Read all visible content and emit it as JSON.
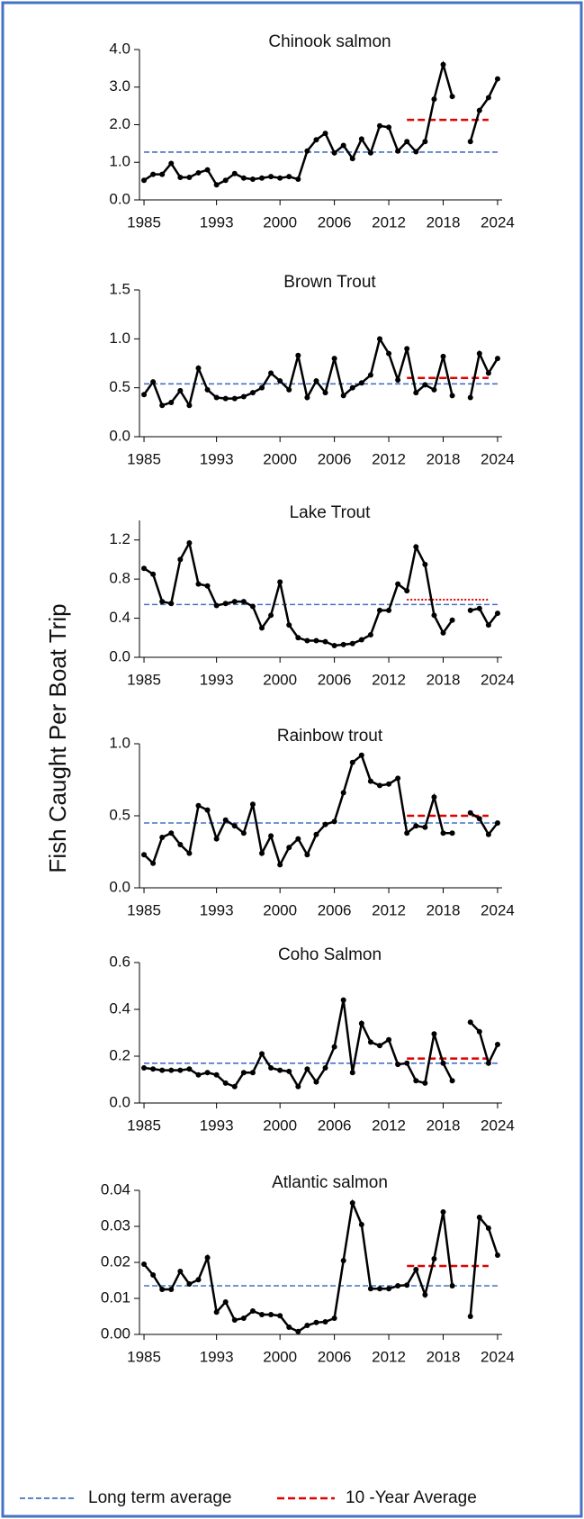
{
  "y_label": "Fish Caught Per Boat Trip",
  "legend": [
    {
      "name": "Long term average",
      "color": "#4472c4"
    },
    {
      "name": "10 -Year Average",
      "color": "#e00000"
    }
  ],
  "chart_data": [
    {
      "type": "line",
      "title": "Chinook salmon",
      "color": "#000000",
      "x": [
        1985,
        1986,
        1987,
        1988,
        1989,
        1990,
        1991,
        1992,
        1993,
        1994,
        1995,
        1996,
        1997,
        1998,
        1999,
        2000,
        2001,
        2002,
        2003,
        2004,
        2005,
        2006,
        2007,
        2008,
        2009,
        2010,
        2011,
        2012,
        2013,
        2014,
        2015,
        2016,
        2017,
        2018,
        2019,
        2020,
        2021,
        2022,
        2023,
        2024
      ],
      "values": [
        0.52,
        0.68,
        0.68,
        0.97,
        0.6,
        0.6,
        0.72,
        0.8,
        0.4,
        0.52,
        0.7,
        0.58,
        0.55,
        0.58,
        0.62,
        0.58,
        0.62,
        0.55,
        1.3,
        1.6,
        1.77,
        1.25,
        1.45,
        1.1,
        1.62,
        1.25,
        1.97,
        1.93,
        1.3,
        1.55,
        1.28,
        1.55,
        2.68,
        3.6,
        2.75,
        null,
        1.55,
        2.38,
        2.72,
        3.22
      ],
      "long_term_average": 1.27,
      "long_term_range": [
        1985,
        2024
      ],
      "ten_year_average": 2.13,
      "ten_year_range": [
        2014,
        2023
      ],
      "ten_year_style": "dashed",
      "xlim": [
        1984.5,
        2024.5
      ],
      "xticks": [
        1985,
        1993,
        2000,
        2006,
        2012,
        2018,
        2024
      ],
      "ylim": [
        0,
        4
      ],
      "yticks": [
        {
          "value": 0,
          "label": "0.0"
        },
        {
          "value": 1,
          "label": "1.0"
        },
        {
          "value": 2,
          "label": "2.0"
        },
        {
          "value": 3,
          "label": "3.0"
        },
        {
          "value": 4,
          "label": "4.0"
        }
      ]
    },
    {
      "type": "line",
      "title": "Brown Trout",
      "color": "#000000",
      "x": [
        1985,
        1986,
        1987,
        1988,
        1989,
        1990,
        1991,
        1992,
        1993,
        1994,
        1995,
        1996,
        1997,
        1998,
        1999,
        2000,
        2001,
        2002,
        2003,
        2004,
        2005,
        2006,
        2007,
        2008,
        2009,
        2010,
        2011,
        2012,
        2013,
        2014,
        2015,
        2016,
        2017,
        2018,
        2019,
        2020,
        2021,
        2022,
        2023,
        2024
      ],
      "values": [
        0.43,
        0.56,
        0.32,
        0.35,
        0.47,
        0.32,
        0.7,
        0.48,
        0.4,
        0.39,
        0.39,
        0.41,
        0.45,
        0.5,
        0.65,
        0.57,
        0.48,
        0.83,
        0.4,
        0.57,
        0.45,
        0.8,
        0.42,
        0.5,
        0.55,
        0.63,
        1.0,
        0.85,
        0.58,
        0.9,
        0.45,
        0.53,
        0.48,
        0.82,
        0.42,
        null,
        0.4,
        0.85,
        0.65,
        0.8
      ],
      "long_term_average": 0.54,
      "long_term_range": [
        1985,
        2024
      ],
      "ten_year_average": 0.6,
      "ten_year_range": [
        2014,
        2023
      ],
      "ten_year_style": "dashed",
      "xlim": [
        1984.5,
        2024.5
      ],
      "xticks": [
        1985,
        1993,
        2000,
        2006,
        2012,
        2018,
        2024
      ],
      "ylim": [
        0,
        1.5
      ],
      "yticks": [
        {
          "value": 0,
          "label": "0.0"
        },
        {
          "value": 0.5,
          "label": "0.5"
        },
        {
          "value": 1,
          "label": "1.0"
        },
        {
          "value": 1.5,
          "label": "1.5"
        }
      ]
    },
    {
      "type": "line",
      "title": "Lake Trout",
      "color": "#000000",
      "x": [
        1985,
        1986,
        1987,
        1988,
        1989,
        1990,
        1991,
        1992,
        1993,
        1994,
        1995,
        1996,
        1997,
        1998,
        1999,
        2000,
        2001,
        2002,
        2003,
        2004,
        2005,
        2006,
        2007,
        2008,
        2009,
        2010,
        2011,
        2012,
        2013,
        2014,
        2015,
        2016,
        2017,
        2018,
        2019,
        2020,
        2021,
        2022,
        2023,
        2024
      ],
      "values": [
        0.91,
        0.85,
        0.57,
        0.55,
        1.0,
        1.17,
        0.75,
        0.73,
        0.53,
        0.55,
        0.57,
        0.57,
        0.52,
        0.3,
        0.43,
        0.77,
        0.33,
        0.2,
        0.17,
        0.17,
        0.16,
        0.12,
        0.13,
        0.14,
        0.18,
        0.23,
        0.48,
        0.48,
        0.75,
        0.68,
        1.13,
        0.95,
        0.43,
        0.25,
        0.38,
        null,
        0.48,
        0.5,
        0.33,
        0.45
      ],
      "long_term_average": 0.54,
      "long_term_range": [
        1985,
        2024
      ],
      "ten_year_average": 0.59,
      "ten_year_range": [
        2014,
        2023
      ],
      "ten_year_style": "dotted",
      "xlim": [
        1984.5,
        2024.5
      ],
      "xticks": [
        1985,
        1993,
        2000,
        2006,
        2012,
        2018,
        2024
      ],
      "ylim": [
        0,
        1.4
      ],
      "yticks": [
        {
          "value": 0,
          "label": "0.0"
        },
        {
          "value": 0.4,
          "label": "0.4"
        },
        {
          "value": 0.8,
          "label": "0.8"
        },
        {
          "value": 1.2,
          "label": "1.2"
        }
      ]
    },
    {
      "type": "line",
      "title": "Rainbow trout",
      "color": "#000000",
      "x": [
        1985,
        1986,
        1987,
        1988,
        1989,
        1990,
        1991,
        1992,
        1993,
        1994,
        1995,
        1996,
        1997,
        1998,
        1999,
        2000,
        2001,
        2002,
        2003,
        2004,
        2005,
        2006,
        2007,
        2008,
        2009,
        2010,
        2011,
        2012,
        2013,
        2014,
        2015,
        2016,
        2017,
        2018,
        2019,
        2020,
        2021,
        2022,
        2023,
        2024
      ],
      "values": [
        0.23,
        0.17,
        0.35,
        0.38,
        0.3,
        0.24,
        0.57,
        0.54,
        0.34,
        0.47,
        0.43,
        0.38,
        0.58,
        0.24,
        0.36,
        0.16,
        0.28,
        0.34,
        0.23,
        0.37,
        0.44,
        0.46,
        0.66,
        0.87,
        0.92,
        0.74,
        0.71,
        0.72,
        0.76,
        0.38,
        0.43,
        0.42,
        0.63,
        0.38,
        0.38,
        null,
        0.52,
        0.48,
        0.37,
        0.45
      ],
      "long_term_average": 0.45,
      "long_term_range": [
        1985,
        2024
      ],
      "ten_year_average": 0.5,
      "ten_year_range": [
        2014,
        2023
      ],
      "ten_year_style": "dashed",
      "xlim": [
        1984.5,
        2024.5
      ],
      "xticks": [
        1985,
        1993,
        2000,
        2006,
        2012,
        2018,
        2024
      ],
      "ylim": [
        0,
        1
      ],
      "yticks": [
        {
          "value": 0,
          "label": "0.0"
        },
        {
          "value": 0.5,
          "label": "0.5"
        },
        {
          "value": 1,
          "label": "1.0"
        }
      ]
    },
    {
      "type": "line",
      "title": "Coho Salmon",
      "color": "#000000",
      "x": [
        1985,
        1986,
        1987,
        1988,
        1989,
        1990,
        1991,
        1992,
        1993,
        1994,
        1995,
        1996,
        1997,
        1998,
        1999,
        2000,
        2001,
        2002,
        2003,
        2004,
        2005,
        2006,
        2007,
        2008,
        2009,
        2010,
        2011,
        2012,
        2013,
        2014,
        2015,
        2016,
        2017,
        2018,
        2019,
        2020,
        2021,
        2022,
        2023,
        2024
      ],
      "values": [
        0.15,
        0.145,
        0.14,
        0.14,
        0.14,
        0.145,
        0.12,
        0.13,
        0.12,
        0.085,
        0.07,
        0.13,
        0.13,
        0.21,
        0.15,
        0.14,
        0.135,
        0.07,
        0.145,
        0.09,
        0.15,
        0.24,
        0.44,
        0.13,
        0.34,
        0.26,
        0.245,
        0.27,
        0.165,
        0.17,
        0.095,
        0.085,
        0.295,
        0.17,
        0.095,
        null,
        0.345,
        0.305,
        0.17,
        0.25
      ],
      "long_term_average": 0.17,
      "long_term_range": [
        1985,
        2024
      ],
      "ten_year_average": 0.19,
      "ten_year_range": [
        2014,
        2023
      ],
      "ten_year_style": "dashed",
      "xlim": [
        1984.5,
        2024.5
      ],
      "xticks": [
        1985,
        1993,
        2000,
        2006,
        2012,
        2018,
        2024
      ],
      "ylim": [
        0,
        0.6
      ],
      "yticks": [
        {
          "value": 0,
          "label": "0.0"
        },
        {
          "value": 0.2,
          "label": "0.2"
        },
        {
          "value": 0.4,
          "label": "0.4"
        },
        {
          "value": 0.6,
          "label": "0.6"
        }
      ]
    },
    {
      "type": "line",
      "title": "Atlantic salmon",
      "color": "#000000",
      "x": [
        1985,
        1986,
        1987,
        1988,
        1989,
        1990,
        1991,
        1992,
        1993,
        1994,
        1995,
        1996,
        1997,
        1998,
        1999,
        2000,
        2001,
        2002,
        2003,
        2004,
        2005,
        2006,
        2007,
        2008,
        2009,
        2010,
        2011,
        2012,
        2013,
        2014,
        2015,
        2016,
        2017,
        2018,
        2019,
        2020,
        2021,
        2022,
        2023,
        2024
      ],
      "values": [
        0.0195,
        0.0165,
        0.0125,
        0.0125,
        0.0175,
        0.014,
        0.0152,
        0.0213,
        0.0062,
        0.009,
        0.004,
        0.0045,
        0.0065,
        0.0055,
        0.0055,
        0.0052,
        0.002,
        0.0008,
        0.0025,
        0.0033,
        0.0035,
        0.0045,
        0.0205,
        0.0365,
        0.0305,
        0.0127,
        0.0127,
        0.0127,
        0.0135,
        0.0137,
        0.018,
        0.011,
        0.021,
        0.034,
        0.0135,
        null,
        0.005,
        0.0325,
        0.0295,
        0.022
      ],
      "long_term_average": 0.0135,
      "long_term_range": [
        1985,
        2024
      ],
      "ten_year_average": 0.019,
      "ten_year_range": [
        2014,
        2023
      ],
      "ten_year_style": "dashed",
      "xlim": [
        1984.5,
        2024.5
      ],
      "xticks": [
        1985,
        1993,
        2000,
        2006,
        2012,
        2018,
        2024
      ],
      "ylim": [
        0,
        0.04
      ],
      "yticks": [
        {
          "value": 0,
          "label": "0.00"
        },
        {
          "value": 0.01,
          "label": "0.01"
        },
        {
          "value": 0.02,
          "label": "0.02"
        },
        {
          "value": 0.03,
          "label": "0.03"
        },
        {
          "value": 0.04,
          "label": "0.04"
        }
      ]
    }
  ]
}
